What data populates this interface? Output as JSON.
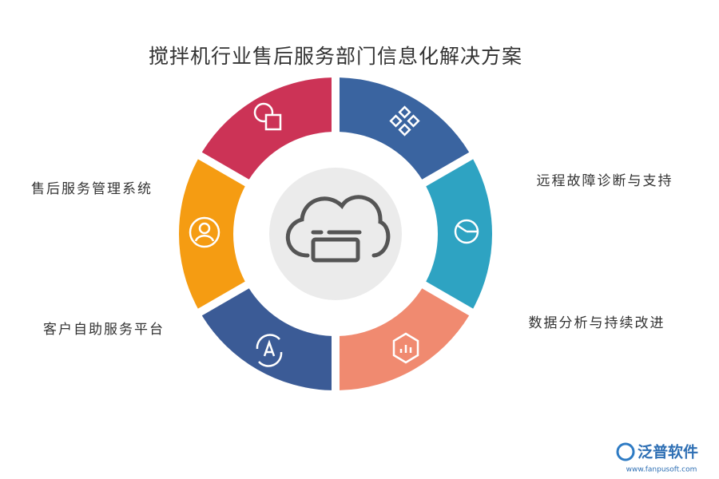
{
  "title": "搅拌机行业售后服务部门信息化解决方案",
  "labels": [
    "远程故障诊断与支持",
    "数据分析与持续改进",
    "售后服务管理系统",
    "客户自助服务平台"
  ],
  "logo": {
    "name": "泛普软件",
    "url": "www.fanpusoft.com"
  }
}
